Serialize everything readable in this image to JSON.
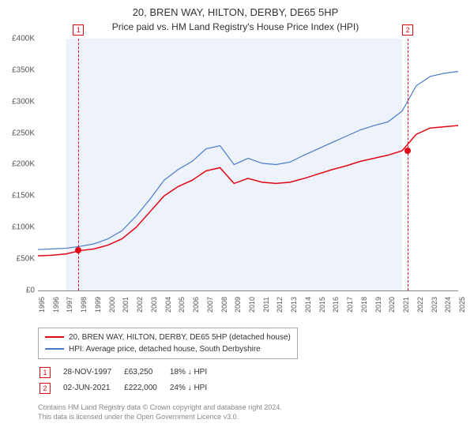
{
  "title": "20, BREN WAY, HILTON, DERBY, DE65 5HP",
  "subtitle": "Price paid vs. HM Land Registry's House Price Index (HPI)",
  "chart": {
    "ylim": [
      0,
      400000
    ],
    "ytick_step": 50000,
    "yticks": [
      "£0",
      "£50K",
      "£100K",
      "£150K",
      "£200K",
      "£250K",
      "£300K",
      "£350K",
      "£400K"
    ],
    "xlim": [
      1995,
      2025
    ],
    "xticks": [
      1995,
      1996,
      1997,
      1998,
      1999,
      2000,
      2001,
      2002,
      2003,
      2004,
      2005,
      2006,
      2007,
      2008,
      2009,
      2010,
      2011,
      2012,
      2013,
      2014,
      2015,
      2016,
      2017,
      2018,
      2019,
      2020,
      2021,
      2022,
      2023,
      2024,
      2025
    ],
    "shaded_start_year": 1997,
    "shaded_end_year": 2021,
    "background_color": "#ffffff",
    "shade_color": "#edf2fb",
    "series": [
      {
        "name": "property",
        "label": "20, BREN WAY, HILTON, DERBY, DE65 5HP (detached house)",
        "color": "#e30613",
        "width": 1.5,
        "data": [
          [
            1995,
            55000
          ],
          [
            1996,
            56000
          ],
          [
            1997,
            58000
          ],
          [
            1998,
            63250
          ],
          [
            1999,
            66000
          ],
          [
            2000,
            72000
          ],
          [
            2001,
            82000
          ],
          [
            2002,
            100000
          ],
          [
            2003,
            125000
          ],
          [
            2004,
            150000
          ],
          [
            2005,
            165000
          ],
          [
            2006,
            175000
          ],
          [
            2007,
            190000
          ],
          [
            2008,
            195000
          ],
          [
            2009,
            170000
          ],
          [
            2010,
            178000
          ],
          [
            2011,
            172000
          ],
          [
            2012,
            170000
          ],
          [
            2013,
            172000
          ],
          [
            2014,
            178000
          ],
          [
            2015,
            185000
          ],
          [
            2016,
            192000
          ],
          [
            2017,
            198000
          ],
          [
            2018,
            205000
          ],
          [
            2019,
            210000
          ],
          [
            2020,
            215000
          ],
          [
            2021,
            222000
          ],
          [
            2022,
            248000
          ],
          [
            2023,
            258000
          ],
          [
            2024,
            260000
          ],
          [
            2025,
            262000
          ]
        ]
      },
      {
        "name": "hpi",
        "label": "HPI: Average price, detached house, South Derbyshire",
        "color": "#4a7bc8",
        "width": 1.2,
        "data": [
          [
            1995,
            65000
          ],
          [
            1996,
            66000
          ],
          [
            1997,
            67000
          ],
          [
            1998,
            70000
          ],
          [
            1999,
            74000
          ],
          [
            2000,
            82000
          ],
          [
            2001,
            95000
          ],
          [
            2002,
            118000
          ],
          [
            2003,
            145000
          ],
          [
            2004,
            175000
          ],
          [
            2005,
            192000
          ],
          [
            2006,
            205000
          ],
          [
            2007,
            225000
          ],
          [
            2008,
            230000
          ],
          [
            2009,
            200000
          ],
          [
            2010,
            210000
          ],
          [
            2011,
            202000
          ],
          [
            2012,
            200000
          ],
          [
            2013,
            204000
          ],
          [
            2014,
            215000
          ],
          [
            2015,
            225000
          ],
          [
            2016,
            235000
          ],
          [
            2017,
            245000
          ],
          [
            2018,
            255000
          ],
          [
            2019,
            262000
          ],
          [
            2020,
            268000
          ],
          [
            2021,
            285000
          ],
          [
            2022,
            325000
          ],
          [
            2023,
            340000
          ],
          [
            2024,
            345000
          ],
          [
            2025,
            348000
          ]
        ]
      }
    ],
    "markers": [
      {
        "id": "1",
        "year": 1997.9,
        "color": "#e30613"
      },
      {
        "id": "2",
        "year": 2021.4,
        "color": "#e30613"
      }
    ],
    "sales": [
      {
        "year": 1997.9,
        "price": 63250,
        "color": "#e30613"
      },
      {
        "year": 2021.4,
        "price": 222000,
        "color": "#e30613"
      }
    ]
  },
  "legend": {
    "rows": [
      "property",
      "hpi"
    ]
  },
  "marker_table": [
    {
      "id": "1",
      "date": "28-NOV-1997",
      "price": "£63,250",
      "delta": "18% ↓ HPI",
      "color": "#e30613"
    },
    {
      "id": "2",
      "date": "02-JUN-2021",
      "price": "£222,000",
      "delta": "24% ↓ HPI",
      "color": "#e30613"
    }
  ],
  "footer": {
    "line1": "Contains HM Land Registry data © Crown copyright and database right 2024.",
    "line2": "This data is licensed under the Open Government Licence v3.0."
  }
}
